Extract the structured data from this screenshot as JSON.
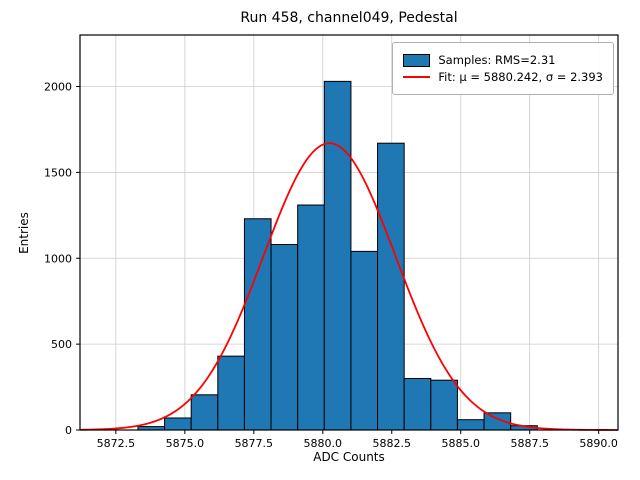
{
  "chart_data": {
    "type": "histogram",
    "title": "Run 458, channel049, Pedestal",
    "xlabel": "ADC Counts",
    "ylabel": "Entries",
    "xlim": [
      5871.2,
      5890.7
    ],
    "ylim": [
      0,
      2300
    ],
    "x_ticks": [
      5872.5,
      5875.0,
      5877.5,
      5880.0,
      5882.5,
      5885.0,
      5887.5,
      5890.0
    ],
    "y_ticks": [
      0,
      500,
      1000,
      1500,
      2000
    ],
    "grid": true,
    "histogram": {
      "bin_start": 5873.3,
      "bin_width": 0.965,
      "counts": [
        20,
        70,
        205,
        430,
        1230,
        1080,
        1310,
        2030,
        1040,
        1670,
        300,
        290,
        60,
        100,
        25
      ]
    },
    "fit": {
      "type": "gaussian",
      "mu": 5880.242,
      "sigma": 2.393,
      "amplitude": 1670
    },
    "legend": {
      "position": "upper right",
      "entries": [
        {
          "label": "Samples: RMS=2.31",
          "swatch": "bar"
        },
        {
          "label": "Fit: μ = 5880.242, σ = 2.393",
          "swatch": "line"
        }
      ]
    },
    "colors": {
      "bar_fill": "#1f77b4",
      "bar_edge": "#000000",
      "fit_line": "#ff0000",
      "grid": "#cccccc",
      "frame": "#000000"
    }
  }
}
